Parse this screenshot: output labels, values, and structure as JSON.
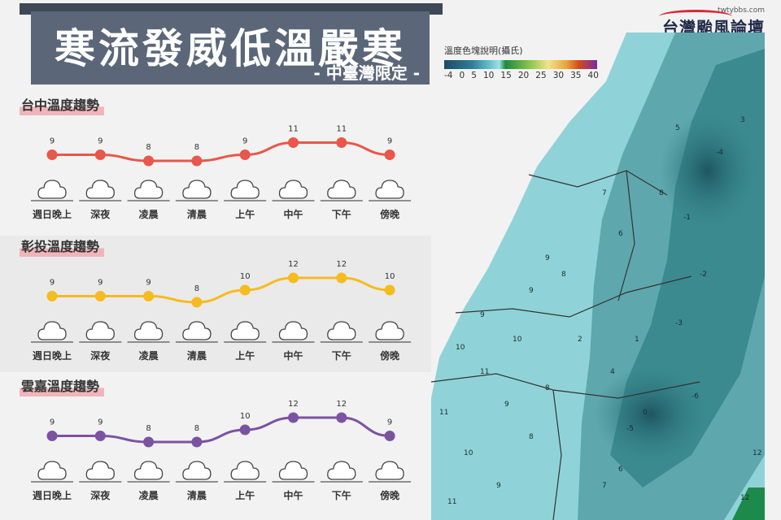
{
  "header": {
    "title": "寒流發威低溫嚴寒",
    "subtitle": "- 中臺灣限定 -"
  },
  "logo": {
    "url": "twtybbs.com",
    "name": "台灣颱風論壇"
  },
  "legend": {
    "title": "溫度色塊說明(攝氏)",
    "ticks": [
      "-4",
      "0",
      "5",
      "10",
      "15",
      "20",
      "25",
      "30",
      "35",
      "40"
    ]
  },
  "chart_data": [
    {
      "type": "line",
      "title": "台中溫度趨勢",
      "categories": [
        "週日晚上",
        "深夜",
        "凌晨",
        "清晨",
        "上午",
        "中午",
        "下午",
        "傍晚"
      ],
      "series": [
        {
          "values": [
            9,
            9,
            8,
            8,
            9,
            11,
            11,
            9
          ]
        }
      ],
      "color": "#e8574a",
      "weather_icon": "cloud-icon"
    },
    {
      "type": "line",
      "title": "彰投溫度趨勢",
      "categories": [
        "週日晚上",
        "深夜",
        "凌晨",
        "清晨",
        "上午",
        "中午",
        "下午",
        "傍晚"
      ],
      "series": [
        {
          "values": [
            9,
            9,
            9,
            8,
            10,
            12,
            12,
            10
          ]
        }
      ],
      "color": "#f6bb1f",
      "weather_icon": "cloud-icon"
    },
    {
      "type": "line",
      "title": "雲嘉溫度趨勢",
      "categories": [
        "週日晚上",
        "深夜",
        "凌晨",
        "清晨",
        "上午",
        "中午",
        "下午",
        "傍晚"
      ],
      "series": [
        {
          "values": [
            9,
            9,
            8,
            8,
            10,
            12,
            12,
            9
          ]
        }
      ],
      "color": "#7b53a2",
      "weather_icon": "cloud-icon"
    }
  ],
  "map": {
    "labels": [
      "9",
      "9",
      "8",
      "10",
      "11",
      "9",
      "8",
      "10",
      "9",
      "11",
      "12",
      "6",
      "7",
      "8",
      "5",
      "-1",
      "-2",
      "-3",
      "0",
      "-5",
      "-6",
      "-4",
      "3",
      "4",
      "2",
      "1",
      "7",
      "6",
      "9",
      "10",
      "8",
      "11",
      "12"
    ]
  }
}
